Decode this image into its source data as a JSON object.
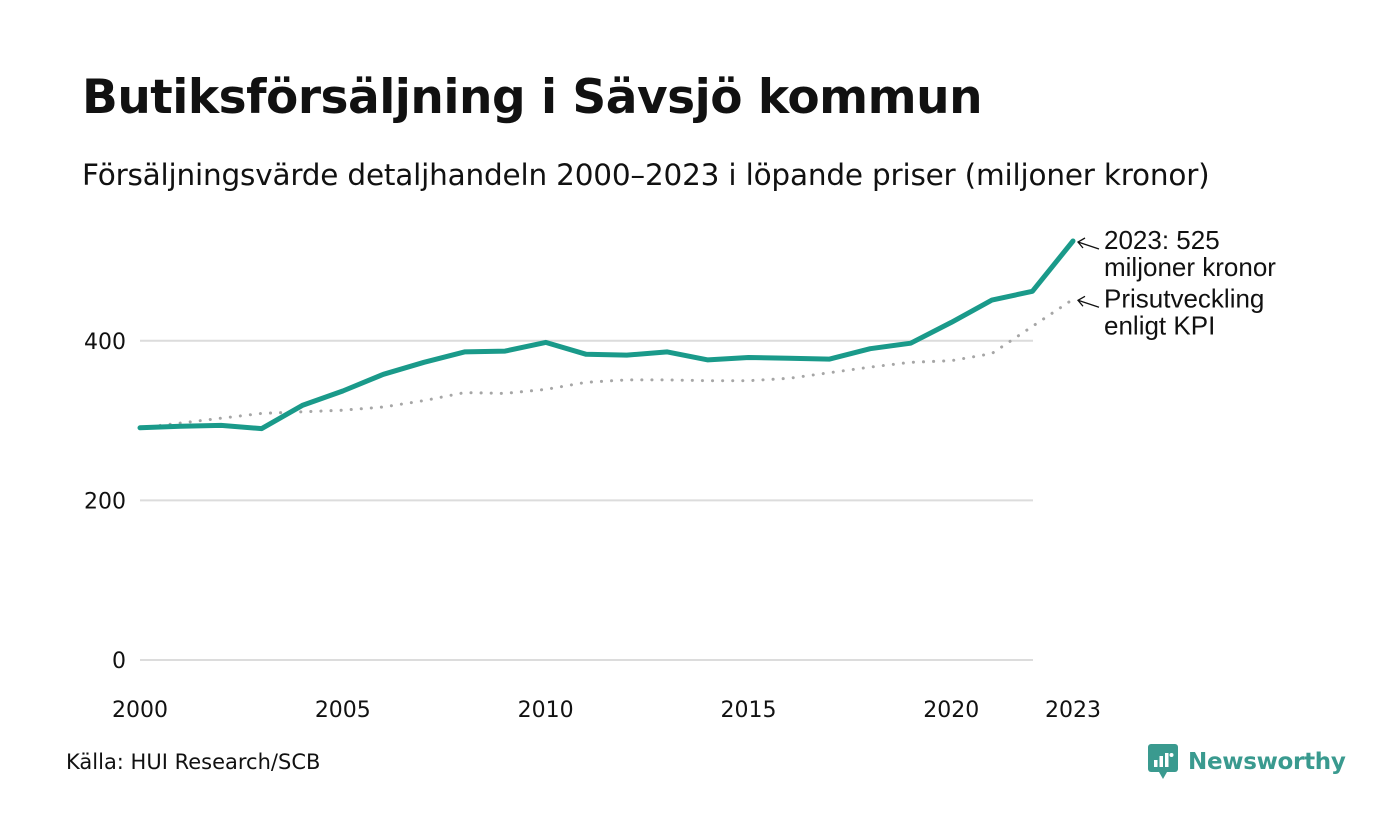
{
  "chart_data": {
    "type": "line",
    "title": "Butiksförsäljning i Sävsjö kommun",
    "subtitle": "Försäljningsvärde detaljhandeln 2000–2023 i löpande priser (miljoner kronor)",
    "xlabel": "",
    "ylabel": "",
    "x": [
      2000,
      2001,
      2002,
      2003,
      2004,
      2005,
      2006,
      2007,
      2008,
      2009,
      2010,
      2011,
      2012,
      2013,
      2014,
      2015,
      2016,
      2017,
      2018,
      2019,
      2020,
      2021,
      2022,
      2023
    ],
    "xlim": [
      2000,
      2023
    ],
    "ylim": [
      0,
      525
    ],
    "x_ticks": [
      "2000",
      "2005",
      "2010",
      "2015",
      "2020",
      "2023"
    ],
    "y_ticks": [
      "0",
      "200",
      "400"
    ],
    "grid": true,
    "series": [
      {
        "name": "Försäljningsvärde",
        "style": "solid",
        "color": "#1a9a8a",
        "values": [
          291,
          293,
          294,
          290,
          319,
          337,
          358,
          373,
          386,
          387,
          398,
          383,
          382,
          386,
          376,
          379,
          378,
          377,
          390,
          397,
          423,
          451,
          462,
          525
        ]
      },
      {
        "name": "Prisutveckling enligt KPI",
        "style": "dotted",
        "color": "#a6a6a6",
        "values": [
          291,
          297,
          303,
          309,
          311,
          313,
          317,
          325,
          335,
          334,
          339,
          348,
          351,
          351,
          350,
          350,
          353,
          360,
          367,
          373,
          375,
          384,
          418,
          452
        ]
      }
    ],
    "annotations": [
      {
        "series": 0,
        "lines": [
          "2023: 525",
          "miljoner kronor"
        ]
      },
      {
        "series": 1,
        "lines": [
          "Prisutveckling",
          "enligt KPI"
        ]
      }
    ]
  },
  "source": "Källa: HUI Research/SCB",
  "brand": {
    "name": "Newsworthy",
    "color": "#3a9a8f"
  }
}
